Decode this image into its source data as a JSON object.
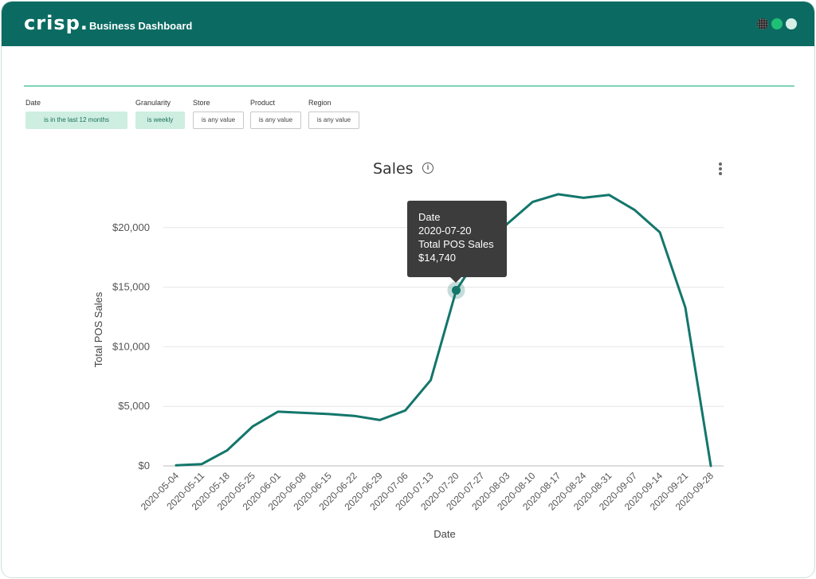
{
  "header": {
    "logo": "crisp.",
    "title": "Business Dashboard"
  },
  "filters": [
    {
      "label": "Date",
      "value": "is in the last 12 months",
      "active": true
    },
    {
      "label": "Granularity",
      "value": "is weekly",
      "active": true
    },
    {
      "label": "Store",
      "value": "is any value",
      "active": false
    },
    {
      "label": "Product",
      "value": "is any value",
      "active": false
    },
    {
      "label": "Region",
      "value": "is any value",
      "active": false
    }
  ],
  "chart": {
    "title": "Sales",
    "info_icon": "info-icon",
    "menu_icon": "kebab-icon"
  },
  "tooltip": {
    "line1": "Date",
    "line2": "2020-07-20",
    "line3": "Total POS Sales",
    "line4": "$14,740"
  },
  "colors": {
    "header_bg": "#0b6b62",
    "line": "#13766b",
    "active_pill": "#cdeee1",
    "divider": "#7fd3b8"
  },
  "chart_data": {
    "type": "line",
    "title": "Sales",
    "xlabel": "Date",
    "ylabel": "Total POS Sales",
    "ylim": [
      0,
      22000
    ],
    "yticks": [
      "$0",
      "$5,000",
      "$10,000",
      "$15,000",
      "$20,000"
    ],
    "categories": [
      "2020-05-04",
      "2020-05-11",
      "2020-05-18",
      "2020-05-25",
      "2020-06-01",
      "2020-06-08",
      "2020-06-15",
      "2020-06-22",
      "2020-06-29",
      "2020-07-06",
      "2020-07-13",
      "2020-07-20",
      "2020-07-27",
      "2020-08-03",
      "2020-08-10",
      "2020-08-17",
      "2020-08-24",
      "2020-08-31",
      "2020-09-07",
      "2020-09-14",
      "2020-09-21",
      "2020-09-28"
    ],
    "series": [
      {
        "values": [
          50,
          150,
          1300,
          3300,
          4550,
          4450,
          4350,
          4200,
          3850,
          4650,
          7200,
          14740,
          18000,
          20300,
          22150,
          22800,
          22500,
          22750,
          21500,
          19600,
          13300,
          0
        ]
      }
    ],
    "highlight_index": 11,
    "grid": true,
    "legend": "none"
  }
}
